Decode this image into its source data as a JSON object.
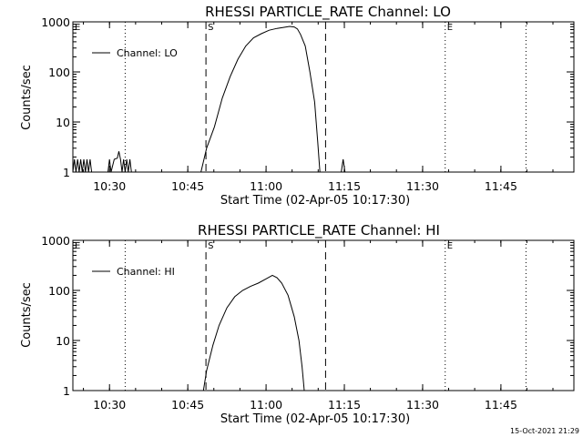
{
  "footer": {
    "timestamp": "15-Oct-2021 21:29"
  },
  "chart_data": [
    {
      "type": "line",
      "title": "RHESSI PARTICLE_RATE Channel: LO",
      "xlabel": "Start Time (02-Apr-05 10:17:30)",
      "ylabel": "Counts/sec",
      "yscale": "log",
      "ylim": [
        1,
        1000
      ],
      "xlim": [
        10.383,
        11.983
      ],
      "x_ticks": [
        {
          "x": 10.5,
          "label": "10:30"
        },
        {
          "x": 10.75,
          "label": "10:45"
        },
        {
          "x": 11.0,
          "label": "11:00"
        },
        {
          "x": 11.25,
          "label": "11:15"
        },
        {
          "x": 11.5,
          "label": "11:30"
        },
        {
          "x": 11.75,
          "label": "11:45"
        }
      ],
      "y_ticks": [
        {
          "y": 1,
          "label": "1"
        },
        {
          "y": 10,
          "label": "10"
        },
        {
          "y": 100,
          "label": "100"
        },
        {
          "y": 1000,
          "label": "1000"
        }
      ],
      "legend": {
        "label": "Channel: LO",
        "position": "top-left"
      },
      "markers": [
        {
          "x": 10.383,
          "label": "E",
          "style": "dotted"
        },
        {
          "x": 10.55,
          "label": "",
          "style": "dotted"
        },
        {
          "x": 10.808,
          "label": "S",
          "style": "dashed"
        },
        {
          "x": 11.19,
          "label": "",
          "style": "dashed"
        },
        {
          "x": 11.572,
          "label": "E",
          "style": "dotted"
        },
        {
          "x": 11.83,
          "label": "",
          "style": "dotted"
        }
      ],
      "series": [
        {
          "name": "Channel: LO",
          "segments": [
            [
              [
                10.383,
                1
              ],
              [
                10.388,
                1.8
              ],
              [
                10.393,
                1
              ],
              [
                10.398,
                1.8
              ],
              [
                10.403,
                1
              ],
              [
                10.408,
                1.8
              ],
              [
                10.413,
                1
              ],
              [
                10.418,
                1.8
              ],
              [
                10.423,
                1
              ],
              [
                10.428,
                1.8
              ],
              [
                10.433,
                1
              ],
              [
                10.438,
                1.8
              ],
              [
                10.443,
                1
              ]
            ],
            [
              [
                10.495,
                1
              ],
              [
                10.5,
                1.8
              ],
              [
                10.505,
                1
              ],
              [
                10.515,
                1.8
              ],
              [
                10.525,
                1.9
              ],
              [
                10.53,
                2.6
              ],
              [
                10.535,
                1.8
              ],
              [
                10.54,
                1
              ],
              [
                10.545,
                1.8
              ],
              [
                10.55,
                1
              ],
              [
                10.555,
                1.8
              ],
              [
                10.56,
                1
              ],
              [
                10.565,
                1.8
              ],
              [
                10.57,
                1
              ]
            ],
            [
              [
                10.792,
                1
              ],
              [
                10.81,
                3
              ],
              [
                10.835,
                8
              ],
              [
                10.86,
                30
              ],
              [
                10.885,
                80
              ],
              [
                10.91,
                180
              ],
              [
                10.935,
                330
              ],
              [
                10.96,
                480
              ],
              [
                10.985,
                580
              ],
              [
                11.01,
                680
              ],
              [
                11.035,
                740
              ],
              [
                11.06,
                780
              ],
              [
                11.075,
                810
              ],
              [
                11.09,
                790
              ],
              [
                11.1,
                720
              ],
              [
                11.11,
                560
              ],
              [
                11.125,
                330
              ],
              [
                11.14,
                100
              ],
              [
                11.155,
                25
              ],
              [
                11.165,
                4
              ],
              [
                11.172,
                1
              ]
            ],
            [
              [
                11.24,
                1
              ],
              [
                11.246,
                1.8
              ],
              [
                11.252,
                1
              ]
            ]
          ]
        }
      ]
    },
    {
      "type": "line",
      "title": "RHESSI PARTICLE_RATE Channel: HI",
      "xlabel": "Start Time (02-Apr-05 10:17:30)",
      "ylabel": "Counts/sec",
      "yscale": "log",
      "ylim": [
        1,
        1000
      ],
      "xlim": [
        10.383,
        11.983
      ],
      "x_ticks": [
        {
          "x": 10.5,
          "label": "10:30"
        },
        {
          "x": 10.75,
          "label": "10:45"
        },
        {
          "x": 11.0,
          "label": "11:00"
        },
        {
          "x": 11.25,
          "label": "11:15"
        },
        {
          "x": 11.5,
          "label": "11:30"
        },
        {
          "x": 11.75,
          "label": "11:45"
        }
      ],
      "y_ticks": [
        {
          "y": 1,
          "label": "1"
        },
        {
          "y": 10,
          "label": "10"
        },
        {
          "y": 100,
          "label": "100"
        },
        {
          "y": 1000,
          "label": "1000"
        }
      ],
      "legend": {
        "label": "Channel: HI",
        "position": "top-left"
      },
      "markers": [
        {
          "x": 10.383,
          "label": "E",
          "style": "dotted"
        },
        {
          "x": 10.55,
          "label": "",
          "style": "dotted"
        },
        {
          "x": 10.808,
          "label": "S",
          "style": "dashed"
        },
        {
          "x": 11.19,
          "label": "",
          "style": "dashed"
        },
        {
          "x": 11.572,
          "label": "E",
          "style": "dotted"
        },
        {
          "x": 11.83,
          "label": "",
          "style": "dotted"
        }
      ],
      "series": [
        {
          "name": "Channel: HI",
          "segments": [
            [
              [
                10.8,
                1
              ],
              [
                10.81,
                2.5
              ],
              [
                10.83,
                8
              ],
              [
                10.85,
                20
              ],
              [
                10.875,
                45
              ],
              [
                10.9,
                75
              ],
              [
                10.925,
                100
              ],
              [
                10.95,
                120
              ],
              [
                10.975,
                140
              ],
              [
                11.0,
                170
              ],
              [
                11.02,
                200
              ],
              [
                11.035,
                180
              ],
              [
                11.05,
                140
              ],
              [
                11.07,
                80
              ],
              [
                11.09,
                30
              ],
              [
                11.105,
                10
              ],
              [
                11.115,
                3
              ],
              [
                11.122,
                1
              ]
            ]
          ]
        }
      ]
    }
  ]
}
